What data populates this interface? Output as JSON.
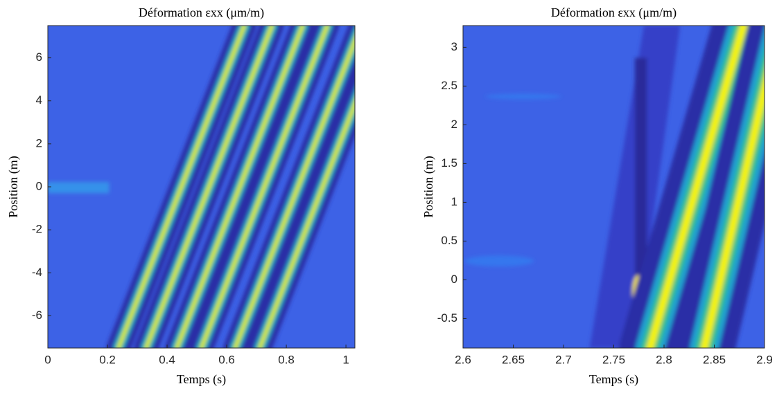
{
  "chart_data": [
    {
      "type": "contour",
      "title": "Déformation εxx (μm/m)",
      "x_label": "Temps (s)",
      "y_label": "Position (m)",
      "xlim": [
        0,
        1.03
      ],
      "ylim": [
        -7.5,
        7.5
      ],
      "xticks": [
        0,
        0.2,
        0.4,
        0.6,
        0.8,
        1
      ],
      "yticks": [
        -6,
        -4,
        -2,
        0,
        2,
        4,
        6
      ]
    },
    {
      "type": "contour",
      "title": "Déformation εxx (μm/m)",
      "x_label": "Temps (s)",
      "y_label": "Position (m)",
      "xlim": [
        2.6,
        2.9
      ],
      "ylim": [
        -0.88,
        3.28
      ],
      "xticks": [
        2.6,
        2.65,
        2.7,
        2.75,
        2.8,
        2.85,
        2.9
      ],
      "yticks": [
        -0.5,
        0,
        0.5,
        1,
        1.5,
        2,
        2.5,
        3
      ]
    }
  ]
}
